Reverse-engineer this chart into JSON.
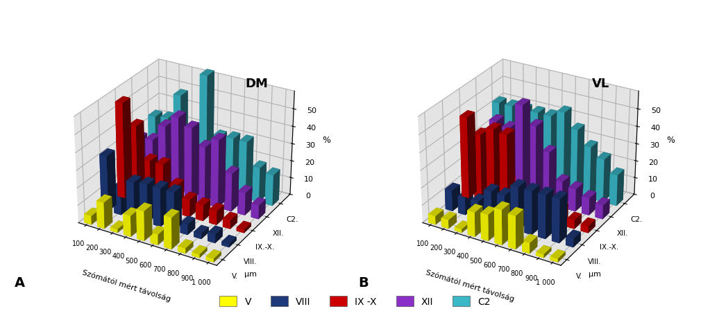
{
  "title_DM": "DM",
  "title_VL": "VL",
  "label_A": "A",
  "label_B": "B",
  "xlabel": "Szómától mért távolság",
  "xunit": "μm",
  "categories": [
    "100",
    "200",
    "300",
    "400",
    "500",
    "600",
    "700",
    "800",
    "900",
    "1 000"
  ],
  "series_colors": [
    "#FFFF00",
    "#1F3A7A",
    "#CC0000",
    "#8B2FC9",
    "#3BB8C8"
  ],
  "legend_labels": [
    "V",
    "VIII",
    "IX -X",
    "XII",
    "C2"
  ],
  "series_back_labels": [
    "C2.",
    "XII.",
    "IX.-X.",
    "VIII.",
    "V."
  ],
  "DM": {
    "V": [
      5,
      15,
      2,
      12,
      17,
      6,
      18,
      3,
      2,
      2
    ],
    "VIII": [
      32,
      16,
      21,
      22,
      22,
      22,
      6,
      3,
      5,
      2
    ],
    "IX-X": [
      55,
      44,
      26,
      26,
      16,
      10,
      9,
      8,
      5,
      2
    ],
    "XII": [
      28,
      29,
      39,
      46,
      42,
      33,
      39,
      22,
      13,
      8
    ],
    "C2": [
      34,
      35,
      50,
      33,
      65,
      32,
      33,
      33,
      20,
      18
    ]
  },
  "VL": {
    "V": [
      5,
      5,
      2,
      14,
      15,
      20,
      19,
      6,
      2,
      2
    ],
    "VIII": [
      12,
      10,
      10,
      18,
      18,
      25,
      25,
      25,
      25,
      5
    ],
    "IX-X": [
      47,
      39,
      44,
      43,
      20,
      7,
      10,
      9,
      5,
      4
    ],
    "XII": [
      30,
      40,
      38,
      53,
      43,
      30,
      15,
      13,
      10,
      8
    ],
    "C2": [
      42,
      42,
      42,
      42,
      42,
      46,
      38,
      30,
      25,
      18
    ]
  },
  "zlim": [
    0,
    60
  ],
  "zticks": [
    0,
    10,
    20,
    30,
    40,
    50
  ],
  "pane_color": "#CACACA",
  "elev": 28,
  "azim": -60
}
